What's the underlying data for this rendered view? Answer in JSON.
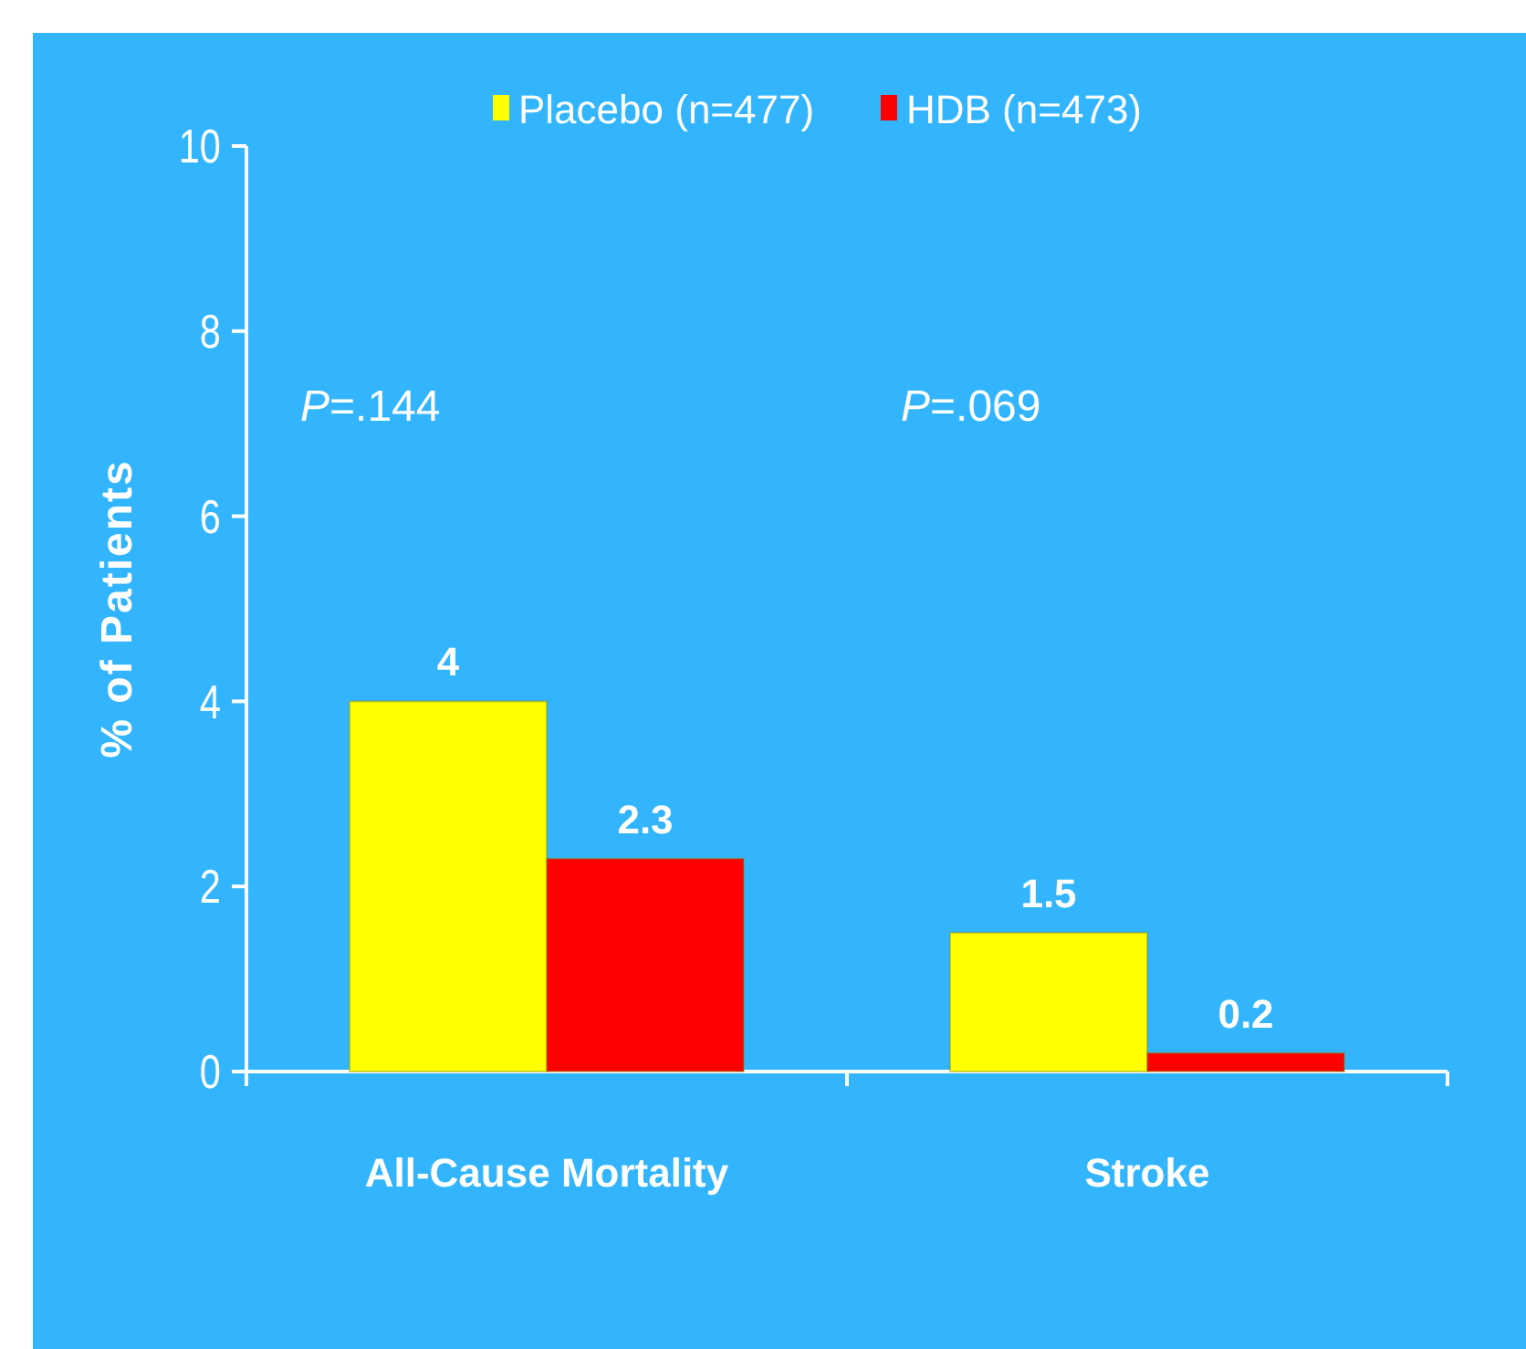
{
  "chart_data": {
    "type": "bar",
    "ylabel": "% of Patients",
    "categories": [
      "All-Cause Mortality",
      "Stroke"
    ],
    "series": [
      {
        "name": "Placebo (n=477)",
        "color": "#ffff00",
        "values": [
          4,
          1.5
        ]
      },
      {
        "name": "HDB (n=473)",
        "color": "#ff0000",
        "values": [
          2.3,
          0.2
        ]
      }
    ],
    "ylim": [
      0,
      10
    ],
    "yticks": [
      0,
      2,
      4,
      6,
      8,
      10
    ],
    "data_labels": true,
    "legend": "top",
    "grid": false,
    "annotations": [
      "P=.144",
      "P=.069"
    ]
  }
}
